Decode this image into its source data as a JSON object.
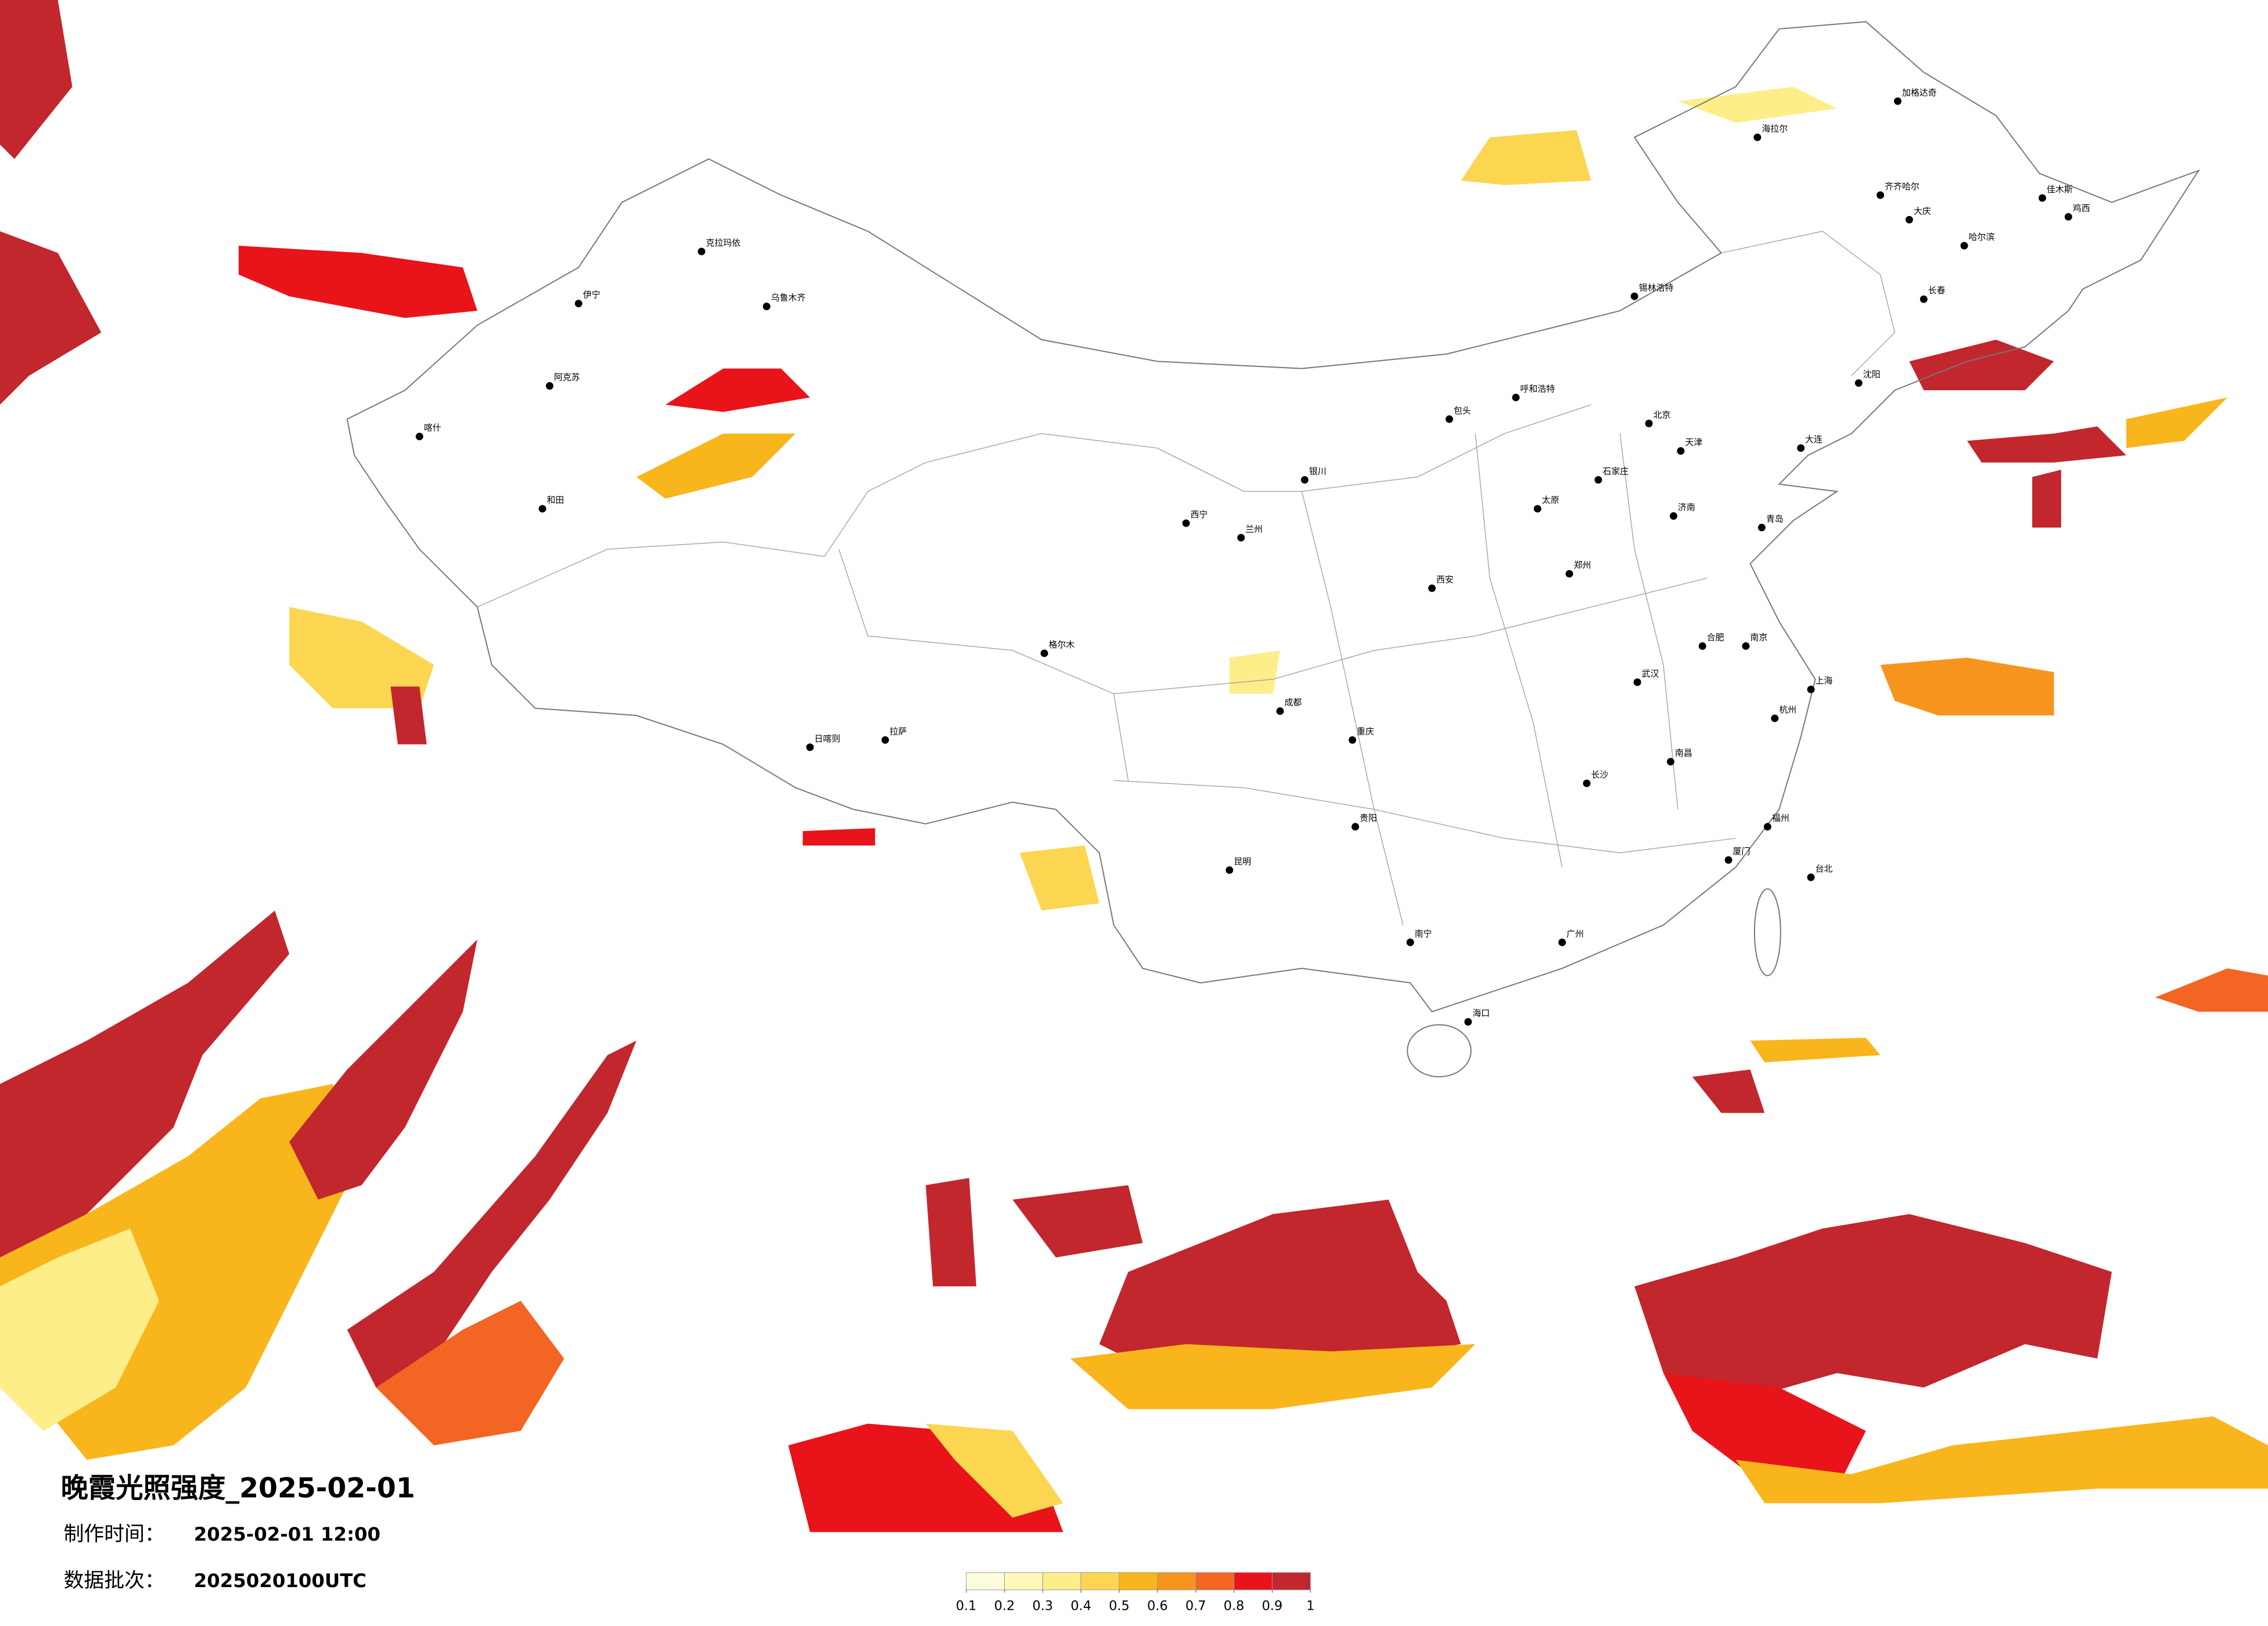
{
  "header": {
    "title": "晚霞光照强度_2025-02-01",
    "made_label": "制作时间：",
    "made_time": "2025-02-01 12:00",
    "batch_label": "数据批次：",
    "batch": "2025020100UTC"
  },
  "legend": {
    "colors": [
      "#fffde0",
      "#fff8b8",
      "#fdee8a",
      "#fcd650",
      "#f9b51c",
      "#f7941d",
      "#f26522",
      "#e8141a",
      "#c1272d"
    ],
    "ticks": [
      0.1,
      0.2,
      0.3,
      0.4,
      0.5,
      0.6,
      0.7,
      0.8,
      0.9,
      1
    ]
  },
  "cities": [
    "海拉尔",
    "加格达奇",
    "齐齐哈尔",
    "哈尔滨",
    "长春",
    "沈阳",
    "呼和浩特",
    "北京",
    "天津",
    "石家庄",
    "太原",
    "济南",
    "郑州",
    "西安",
    "兰州",
    "西宁",
    "银川",
    "武汉",
    "长沙",
    "南昌",
    "合肥",
    "南京",
    "上海",
    "杭州",
    "福州",
    "台北",
    "广州",
    "海口",
    "南宁",
    "贵阳",
    "昆明",
    "成都",
    "重庆",
    "拉萨",
    "乌鲁木齐",
    "克拉玛依",
    "伊宁",
    "阿克苏",
    "喀什",
    "和田",
    "格尔木",
    "日喀则",
    "锡林浩特",
    "鸡西",
    "佳木斯",
    "大庆",
    "包头",
    "大连",
    "青岛",
    "厦门"
  ]
}
